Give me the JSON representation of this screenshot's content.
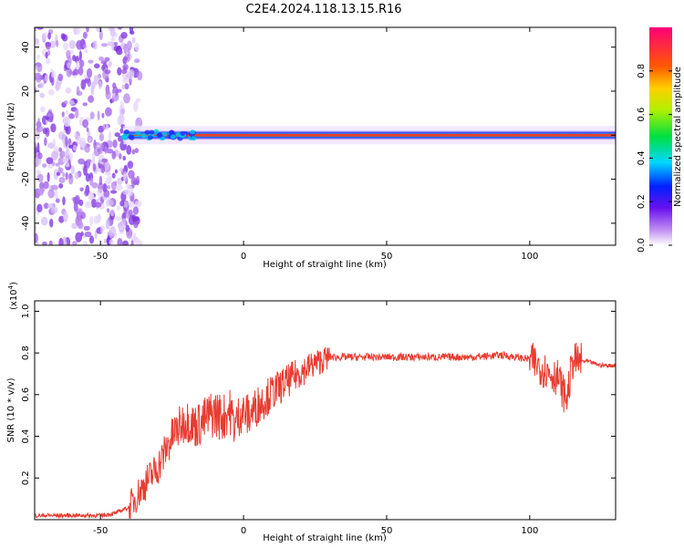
{
  "title": "C2E4.2024.118.13.15.R16",
  "colors": {
    "snr_line": "#e83c30",
    "spectrogram_band": "#e8412a",
    "scatter": "#8a35e0"
  },
  "chart_data": [
    {
      "type": "heatmap",
      "xlabel": "Height of straight line (km)",
      "ylabel": "Frequency (Hz)",
      "xlim": [
        -73,
        130
      ],
      "ylim": [
        -50,
        49
      ],
      "xticks": [
        -50,
        0,
        50,
        100
      ],
      "yticks": [
        40,
        20,
        0,
        -20,
        -40
      ],
      "colorbar": {
        "label": "Normalized spectral amplitude",
        "range": [
          0,
          1
        ],
        "ticks": [
          "0.0",
          "0.2",
          "0.4",
          "0.6",
          "0.8"
        ]
      },
      "band_center_hz": 0,
      "noise_region_x": [
        -73,
        -40
      ]
    },
    {
      "type": "line",
      "xlabel": "Height of straight line (km)",
      "ylabel": "SNR (10 * v/v)",
      "multiplier": "(x10",
      "multiplier_exp": "4",
      "xlim": [
        -73,
        130
      ],
      "ylim": [
        0,
        1.05
      ],
      "xticks": [
        -50,
        0,
        50,
        100
      ],
      "yticks": [
        "0.2",
        "0.4",
        "0.6",
        "0.8",
        "1.0"
      ],
      "series": [
        {
          "x": [
            -73,
            -60,
            -50,
            -45,
            -40,
            -37,
            -34,
            -30,
            -27,
            -24,
            -20,
            -17,
            -14,
            -12,
            -10,
            -7,
            -5,
            -3,
            -1,
            2,
            5,
            10,
            15,
            20,
            25,
            30,
            40,
            50,
            60,
            70,
            80,
            90,
            95,
            100,
            105,
            110,
            112,
            113,
            115,
            120,
            125,
            130
          ],
          "y": [
            0.02,
            0.02,
            0.02,
            0.03,
            0.06,
            0.12,
            0.18,
            0.25,
            0.34,
            0.42,
            0.48,
            0.45,
            0.47,
            0.5,
            0.51,
            0.49,
            0.53,
            0.45,
            0.52,
            0.5,
            0.55,
            0.61,
            0.66,
            0.71,
            0.75,
            0.78,
            0.78,
            0.78,
            0.78,
            0.78,
            0.78,
            0.79,
            0.78,
            0.77,
            0.72,
            0.68,
            0.6,
            0.58,
            0.76,
            0.76,
            0.74,
            0.74
          ]
        }
      ]
    }
  ]
}
